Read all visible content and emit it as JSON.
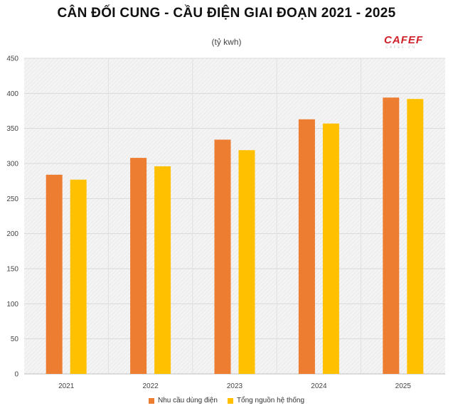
{
  "chart_data": {
    "type": "bar",
    "title": "CÂN ĐỐI CUNG - CẦU ĐIỆN GIAI ĐOẠN 2021 - 2025",
    "subtitle": "(tỷ kwh)",
    "categories": [
      "2021",
      "2022",
      "2023",
      "2024",
      "2025"
    ],
    "series": [
      {
        "name": "Nhu cầu dùng điện",
        "color": "#ED7D31",
        "values": [
          284,
          308,
          334,
          363,
          394
        ]
      },
      {
        "name": "Tổng nguồn hệ thống",
        "color": "#FFC000",
        "values": [
          277,
          296,
          319,
          357,
          392
        ]
      }
    ],
    "ylim": [
      0,
      450
    ],
    "yticks": [
      "0",
      "50",
      "100",
      "150",
      "200",
      "250",
      "300",
      "350",
      "400",
      "450"
    ],
    "grid": true,
    "legend_position": "bottom"
  },
  "brand": {
    "logo_text": "CAFEF",
    "logo_subtext": "CAFEF.VN"
  }
}
